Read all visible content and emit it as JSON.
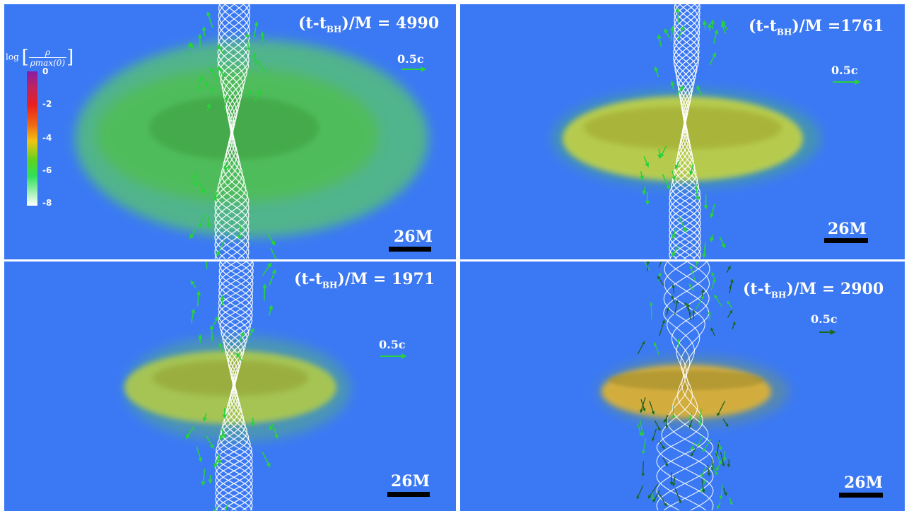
{
  "colorbar": {
    "title_prefix": "log",
    "title_numerator": "ρ",
    "title_denominator": "ρmax(0)",
    "ticks": [
      "0",
      "-2",
      "-4",
      "-6",
      "-8"
    ],
    "colors": [
      "#8a1aa8",
      "#ea1f1f",
      "#ef6a12",
      "#f2c412",
      "#2fe05a",
      "#ffffff"
    ]
  },
  "panels": [
    {
      "time_prefix": "(t-t",
      "time_sub": "BH",
      "time_suffix": ")/M = 4990",
      "velocity_label": "0.5c",
      "scale_label": "26M",
      "disk_color": "#5fce56"
    },
    {
      "time_prefix": "(t-t",
      "time_sub": "BH",
      "time_suffix": ")/M =1761",
      "velocity_label": "0.5c",
      "scale_label": "26M",
      "disk_color": "#c9d73a"
    },
    {
      "time_prefix": "(t-t",
      "time_sub": "BH",
      "time_suffix": ")/M = 1971",
      "velocity_label": "0.5c",
      "scale_label": "26M",
      "disk_color": "#bfd23d"
    },
    {
      "time_prefix": "(t-t",
      "time_sub": "BH",
      "time_suffix": ")/M = 2900",
      "velocity_label": "0.5c",
      "scale_label": "26M",
      "disk_color": "#dcae2f"
    }
  ],
  "background_color": "#3b79f4",
  "jet_color": "#ffffff",
  "arrow_color": "#28d23a"
}
